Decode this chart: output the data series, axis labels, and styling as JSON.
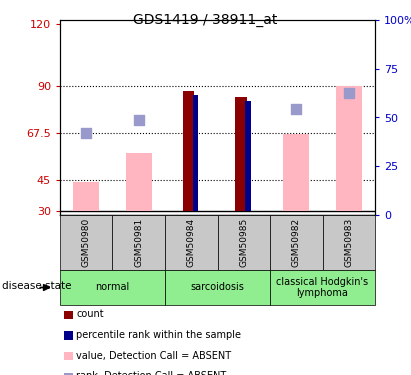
{
  "title": "GDS1419 / 38911_at",
  "samples": [
    "GSM50980",
    "GSM50981",
    "GSM50984",
    "GSM50985",
    "GSM50982",
    "GSM50983"
  ],
  "group_defs": [
    {
      "label": "normal",
      "start": 0,
      "end": 2,
      "color": "#90EE90"
    },
    {
      "label": "sarcoidosis",
      "start": 2,
      "end": 4,
      "color": "#90EE90"
    },
    {
      "label": "classical Hodgkin's\nlymphoma",
      "start": 4,
      "end": 6,
      "color": "#90EE90"
    }
  ],
  "ylim_left": [
    28,
    122
  ],
  "ylim_right": [
    0,
    100
  ],
  "yticks_left": [
    30,
    45,
    67.5,
    90,
    120
  ],
  "yticks_right": [
    0,
    25,
    50,
    75,
    100
  ],
  "ytick_labels_left": [
    "30",
    "45",
    "67.5",
    "90",
    "120"
  ],
  "ytick_labels_right": [
    "0",
    "25",
    "50",
    "75",
    "100%"
  ],
  "hlines": [
    45,
    67.5,
    90
  ],
  "bar_bottom": 30,
  "count_bars": {
    "GSM50984": 88,
    "GSM50985": 85
  },
  "percentile_bars": {
    "GSM50984": 86,
    "GSM50985": 83
  },
  "value_absent_bars": {
    "GSM50980": 44,
    "GSM50981": 58,
    "GSM50982": 67,
    "GSM50983": 90
  },
  "rank_absent_dots": {
    "GSM50980": 67.5,
    "GSM50981": 74,
    "GSM50982": 79,
    "GSM50983": 87
  },
  "count_color": "#8B0000",
  "percentile_color": "#00008B",
  "value_absent_color": "#FFB6C1",
  "rank_absent_color": "#9999CC",
  "bar_width": 0.5,
  "count_bar_width": 0.22,
  "percentile_bar_width": 0.1,
  "dot_size": 55,
  "disease_state_label": "disease state",
  "background_color": "#ffffff",
  "plot_bg_color": "#ffffff",
  "left_axis_color": "#CC0000",
  "right_axis_color": "#0000CC",
  "sample_box_color": "#C8C8C8",
  "legend_labels": [
    "count",
    "percentile rank within the sample",
    "value, Detection Call = ABSENT",
    "rank, Detection Call = ABSENT"
  ],
  "legend_colors": [
    "#8B0000",
    "#00008B",
    "#FFB6C1",
    "#9999CC"
  ]
}
